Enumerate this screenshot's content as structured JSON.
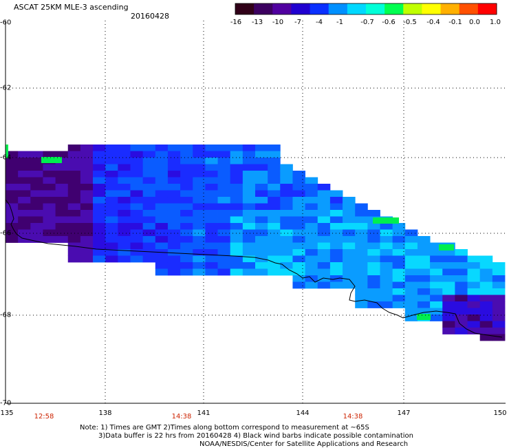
{
  "title": "ASCAT 25KM MLE-3 ascending",
  "date": "20160428",
  "colorbar": {
    "labels": [
      "-16",
      "-13",
      "-10",
      "-7",
      "-4",
      "-1",
      "-0.7",
      "-0.6",
      "-0.5",
      "-0.4",
      "-0.1",
      "0.0",
      "1.0"
    ],
    "colors": [
      "#300018",
      "#3c0060",
      "#5000a0",
      "#2000d0",
      "#0a30ff",
      "#0090ff",
      "#00d8ff",
      "#00ffd8",
      "#00ff50",
      "#c0ff00",
      "#ffff00",
      "#ffb000",
      "#ff5000",
      "#ff0000"
    ]
  },
  "axes": {
    "y_labels": [
      "-60",
      "-62",
      "-64",
      "-66",
      "-68",
      "-70"
    ],
    "x_labels": [
      "135",
      "138",
      "141",
      "144",
      "147",
      "150"
    ]
  },
  "times": [
    "12:58",
    "14:38",
    "14:38"
  ],
  "notes": [
    "Note: 1) Times are GMT 2)Times along bottom correspond to measurement at ~65S",
    "3)Data buffer is 22 hrs from 20160428 4) Black wind barbs indicate possible contamination",
    "NOAA/NESDIS/Center for Satellite Applications and Research"
  ],
  "swath_colors": {
    "deep": "#400070",
    "purple": "#4a0cb0",
    "indigo": "#2a0ce0",
    "blue": "#1a2cff",
    "azure": "#0a5cff",
    "sky": "#0a9cff",
    "cyan": "#08d8ff",
    "green": "#00ee50"
  }
}
